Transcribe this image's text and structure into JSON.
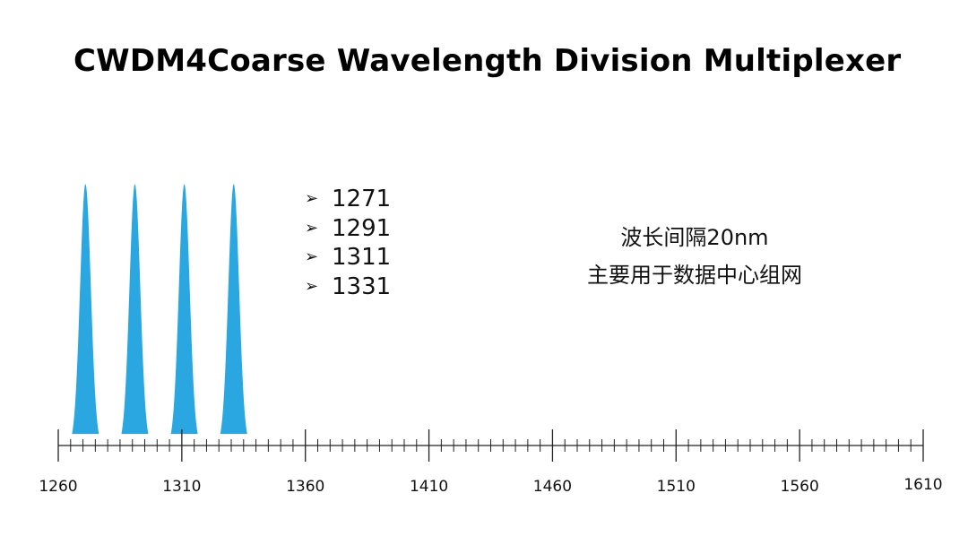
{
  "title": "CWDM4Coarse Wavelength Division Multiplexer",
  "channels": [
    "1271",
    "1291",
    "1311",
    "1331"
  ],
  "notes": [
    "波长间隔20nm",
    "主要用于数据中心组网"
  ],
  "colors": {
    "peak": "#2aa7e0",
    "axis": "#222222",
    "text": "#111111"
  },
  "chart_data": {
    "type": "area",
    "title": "CWDM4Coarse Wavelength Division Multiplexer",
    "xlabel": "",
    "ylabel": "",
    "xlim": [
      1260,
      1610
    ],
    "major_ticks": [
      1260,
      1310,
      1360,
      1410,
      1460,
      1510,
      1560,
      1610
    ],
    "tick_labels": [
      "1260",
      "1310",
      "1360",
      "1410",
      "1460",
      "1510",
      "1560",
      "1610"
    ],
    "minor_tick_step": 5,
    "peaks": [
      1271,
      1291,
      1311,
      1331
    ],
    "grid": false,
    "legend": "none"
  }
}
